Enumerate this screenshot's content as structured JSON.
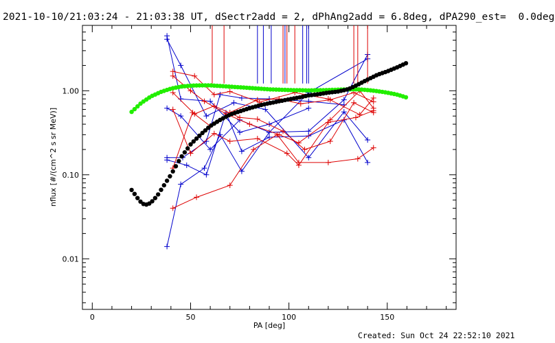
{
  "title": "2021-10-10/21:03:24 - 21:03:38 UT, dSectr2add = 2, dPhAng2add = 6.8deg, dPA290_est=  0.0deg",
  "footer": "Created: Sun Oct 24 22:52:10 2021",
  "chart_data": {
    "type": "scatter",
    "xlabel": "PA [deg]",
    "ylabel": "nflux [#/(cm^2 s sr MeV)]",
    "xlim": [
      -5,
      185
    ],
    "ylim": [
      0.0025,
      6.0
    ],
    "yscale": "log",
    "xticks": [
      0,
      50,
      100,
      150
    ],
    "xtick_labels": [
      "0",
      "50",
      "100",
      "150"
    ],
    "yticks": [
      0.01,
      0.1,
      1.0
    ],
    "ytick_labels": [
      "0.01",
      "0.10",
      "1.00"
    ],
    "colors": {
      "blue": "#0000cc",
      "red": "#dd0000",
      "green": "#22ee00",
      "black": "#000000"
    },
    "series": [
      {
        "color": "blue",
        "marker": "plus",
        "lines": [
          [
            [
              38,
              4.5
            ],
            [
              45,
              0.8
            ],
            [
              60,
              0.75
            ],
            [
              75,
              0.32
            ],
            [
              90,
              0.4
            ],
            [
              110,
              0.62
            ]
          ],
          [
            [
              38,
              4.1
            ],
            [
              45,
              2.0
            ],
            [
              58,
              0.5
            ],
            [
              72,
              0.72
            ],
            [
              88,
              0.6
            ],
            [
              110,
              0.16
            ],
            [
              128,
              0.56
            ],
            [
              140,
              0.26
            ]
          ],
          [
            [
              38,
              0.62
            ],
            [
              45,
              0.5
            ],
            [
              60,
              0.2
            ],
            [
              75,
              0.45
            ],
            [
              90,
              0.32
            ],
            [
              110,
              0.33
            ],
            [
              128,
              0.78
            ],
            [
              140,
              2.7
            ]
          ],
          [
            [
              38,
              0.16
            ],
            [
              46,
              0.16
            ],
            [
              58,
              0.25
            ],
            [
              65,
              0.9
            ],
            [
              76,
              0.82
            ],
            [
              90,
              0.8
            ],
            [
              110,
              0.75
            ],
            [
              128,
              0.68
            ]
          ],
          [
            [
              38,
              0.15
            ],
            [
              48,
              0.13
            ],
            [
              58,
              0.1
            ],
            [
              68,
              0.55
            ],
            [
              76,
              0.19
            ],
            [
              90,
              0.28
            ],
            [
              110,
              0.29
            ],
            [
              128,
              0.45
            ],
            [
              140,
              0.14
            ]
          ],
          [
            [
              38,
              0.014
            ],
            [
              45,
              0.077
            ],
            [
              57,
              0.12
            ],
            [
              65,
              0.3
            ],
            [
              76,
              0.11
            ],
            [
              90,
              0.32
            ],
            [
              110,
              0.95
            ],
            [
              140,
              2.4
            ]
          ]
        ],
        "clipped_x": [
          84,
          87,
          91,
          98,
          107,
          109,
          110
        ]
      },
      {
        "color": "red",
        "marker": "plus",
        "lines": [
          [
            [
              41,
              1.7
            ],
            [
              52,
              1.5
            ],
            [
              62,
              0.9
            ],
            [
              70,
              0.98
            ],
            [
              85,
              0.73
            ],
            [
              103,
              0.95
            ],
            [
              120,
              0.8
            ],
            [
              136,
              0.52
            ],
            [
              143,
              0.82
            ]
          ],
          [
            [
              41,
              1.5
            ],
            [
              50,
              1.0
            ],
            [
              57,
              0.75
            ],
            [
              68,
              0.53
            ],
            [
              80,
              0.4
            ],
            [
              95,
              0.3
            ],
            [
              105,
              0.24
            ],
            [
              121,
              0.45
            ],
            [
              136,
              1.0
            ],
            [
              143,
              0.62
            ]
          ],
          [
            [
              41,
              0.95
            ],
            [
              52,
              0.53
            ],
            [
              62,
              0.66
            ],
            [
              75,
              0.48
            ],
            [
              84,
              0.46
            ],
            [
              97,
              0.33
            ],
            [
              108,
              0.2
            ],
            [
              121,
              0.25
            ],
            [
              133,
              0.72
            ],
            [
              143,
              0.55
            ]
          ],
          [
            [
              41,
              0.6
            ],
            [
              50,
              0.18
            ],
            [
              62,
              0.31
            ],
            [
              70,
              0.25
            ],
            [
              84,
              0.27
            ],
            [
              99,
              0.18
            ],
            [
              105,
              0.13
            ],
            [
              120,
              0.42
            ],
            [
              134,
              0.48
            ],
            [
              143,
              0.58
            ]
          ],
          [
            [
              41,
              0.12
            ],
            [
              51,
              0.55
            ],
            [
              60,
              0.38
            ],
            [
              70,
              0.55
            ],
            [
              84,
              0.78
            ],
            [
              95,
              0.8
            ],
            [
              106,
              0.7
            ],
            [
              121,
              0.78
            ],
            [
              133,
              0.95
            ],
            [
              143,
              0.74
            ]
          ],
          [
            [
              41,
              0.04
            ],
            [
              53,
              0.054
            ],
            [
              70,
              0.075
            ],
            [
              82,
              0.2
            ],
            [
              94,
              0.3
            ],
            [
              105,
              0.14
            ],
            [
              120,
              0.14
            ],
            [
              135,
              0.155
            ],
            [
              143,
              0.21
            ]
          ]
        ],
        "clipped_x": [
          61,
          67,
          97,
          99,
          103,
          133,
          135,
          140
        ]
      },
      {
        "color": "green",
        "marker": "filled-circle",
        "curve": [
          [
            20,
            0.56
          ],
          [
            25,
            0.72
          ],
          [
            30,
            0.86
          ],
          [
            35,
            0.97
          ],
          [
            40,
            1.06
          ],
          [
            45,
            1.12
          ],
          [
            50,
            1.15
          ],
          [
            55,
            1.16
          ],
          [
            60,
            1.16
          ],
          [
            70,
            1.12
          ],
          [
            80,
            1.08
          ],
          [
            90,
            1.04
          ],
          [
            100,
            1.02
          ],
          [
            110,
            1.01
          ],
          [
            120,
            1.02
          ],
          [
            125,
            1.03
          ],
          [
            130,
            1.04
          ],
          [
            135,
            1.04
          ],
          [
            140,
            1.02
          ],
          [
            145,
            0.99
          ],
          [
            150,
            0.95
          ],
          [
            155,
            0.9
          ],
          [
            160,
            0.83
          ]
        ]
      },
      {
        "color": "black",
        "marker": "filled-circle",
        "curve": [
          [
            20,
            0.066
          ],
          [
            22,
            0.057
          ],
          [
            24,
            0.049
          ],
          [
            26,
            0.045
          ],
          [
            28,
            0.044
          ],
          [
            30,
            0.047
          ],
          [
            33,
            0.056
          ],
          [
            36,
            0.072
          ],
          [
            40,
            0.1
          ],
          [
            45,
            0.16
          ],
          [
            50,
            0.23
          ],
          [
            55,
            0.3
          ],
          [
            60,
            0.38
          ],
          [
            65,
            0.45
          ],
          [
            70,
            0.52
          ],
          [
            75,
            0.57
          ],
          [
            80,
            0.62
          ],
          [
            85,
            0.67
          ],
          [
            90,
            0.71
          ],
          [
            95,
            0.75
          ],
          [
            100,
            0.79
          ],
          [
            105,
            0.83
          ],
          [
            110,
            0.88
          ],
          [
            115,
            0.91
          ],
          [
            120,
            0.95
          ],
          [
            125,
            0.98
          ],
          [
            130,
            1.04
          ],
          [
            135,
            1.18
          ],
          [
            140,
            1.36
          ],
          [
            145,
            1.55
          ],
          [
            150,
            1.7
          ],
          [
            155,
            1.9
          ],
          [
            160,
            2.15
          ]
        ]
      }
    ]
  }
}
